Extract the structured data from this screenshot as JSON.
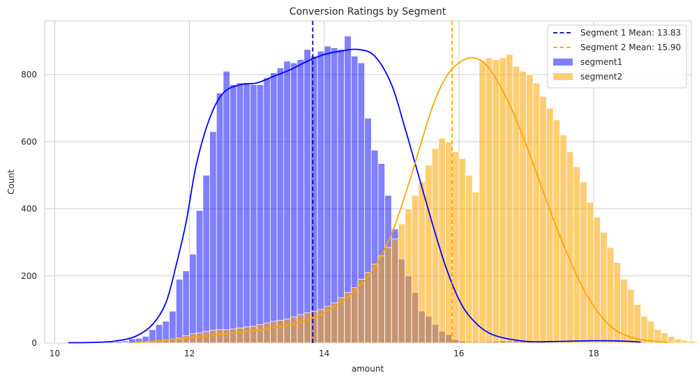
{
  "chart_data": {
    "type": "histogram",
    "title": "Conversion Ratings by Segment",
    "xlabel": "amount",
    "ylabel": "Count",
    "xlim": [
      9.85,
      19.45
    ],
    "ylim": [
      0,
      960
    ],
    "xticks": [
      10,
      12,
      14,
      16,
      18
    ],
    "yticks": [
      0,
      200,
      400,
      600,
      800
    ],
    "grid": true,
    "legend_position": "top-right",
    "colors": {
      "segment1": "#0000ff",
      "segment2": "#ffa500",
      "mean1_line": "#0000aa",
      "mean2_line": "#ffa500"
    },
    "series": [
      {
        "name": "segment1",
        "bin_start": 10.2,
        "bin_width": 0.1,
        "counts": [
          1,
          0,
          1,
          2,
          1,
          2,
          3,
          4,
          6,
          12,
          14,
          20,
          40,
          55,
          65,
          95,
          190,
          215,
          265,
          395,
          500,
          630,
          745,
          810,
          770,
          775,
          775,
          770,
          770,
          790,
          805,
          820,
          840,
          835,
          845,
          875,
          855,
          870,
          885,
          880,
          875,
          915,
          855,
          835,
          670,
          575,
          535,
          440,
          340,
          250,
          200,
          150,
          95,
          80,
          55,
          35,
          25,
          10,
          6,
          4,
          4,
          3,
          4,
          5,
          7,
          6,
          7,
          6,
          7,
          5,
          3,
          2,
          1,
          1,
          0
        ],
        "kde": [
          [
            10.2,
            1
          ],
          [
            10.6,
            2
          ],
          [
            10.9,
            6
          ],
          [
            11.2,
            20
          ],
          [
            11.45,
            55
          ],
          [
            11.65,
            120
          ],
          [
            11.8,
            230
          ],
          [
            11.95,
            360
          ],
          [
            12.1,
            530
          ],
          [
            12.3,
            670
          ],
          [
            12.5,
            745
          ],
          [
            12.75,
            770
          ],
          [
            13.0,
            775
          ],
          [
            13.25,
            795
          ],
          [
            13.5,
            815
          ],
          [
            13.75,
            840
          ],
          [
            14.0,
            860
          ],
          [
            14.25,
            870
          ],
          [
            14.5,
            875
          ],
          [
            14.75,
            855
          ],
          [
            15.0,
            770
          ],
          [
            15.2,
            640
          ],
          [
            15.4,
            500
          ],
          [
            15.6,
            360
          ],
          [
            15.8,
            230
          ],
          [
            16.0,
            130
          ],
          [
            16.2,
            70
          ],
          [
            16.5,
            25
          ],
          [
            17.0,
            5
          ],
          [
            17.5,
            5
          ],
          [
            18.0,
            7
          ],
          [
            18.4,
            6
          ],
          [
            18.7,
            3
          ]
        ]
      },
      {
        "name": "segment2",
        "bin_start": 11.0,
        "bin_width": 0.1,
        "counts": [
          1,
          0,
          2,
          3,
          5,
          8,
          10,
          12,
          15,
          22,
          28,
          30,
          35,
          38,
          40,
          40,
          42,
          45,
          48,
          50,
          55,
          60,
          65,
          68,
          72,
          78,
          85,
          90,
          95,
          100,
          110,
          120,
          135,
          150,
          165,
          190,
          210,
          235,
          260,
          285,
          310,
          355,
          400,
          440,
          480,
          530,
          580,
          610,
          600,
          570,
          550,
          500,
          450,
          840,
          850,
          845,
          850,
          860,
          825,
          810,
          800,
          775,
          735,
          700,
          665,
          620,
          570,
          525,
          480,
          420,
          375,
          330,
          285,
          240,
          190,
          160,
          115,
          80,
          65,
          40,
          30,
          20,
          12,
          8,
          5,
          3,
          2,
          1,
          1,
          0,
          0
        ],
        "kde": [
          [
            11.2,
            2
          ],
          [
            11.6,
            8
          ],
          [
            12.0,
            16
          ],
          [
            12.5,
            26
          ],
          [
            13.0,
            38
          ],
          [
            13.5,
            55
          ],
          [
            13.9,
            80
          ],
          [
            14.2,
            115
          ],
          [
            14.5,
            165
          ],
          [
            14.75,
            225
          ],
          [
            15.0,
            325
          ],
          [
            15.2,
            440
          ],
          [
            15.4,
            570
          ],
          [
            15.6,
            700
          ],
          [
            15.8,
            790
          ],
          [
            16.0,
            835
          ],
          [
            16.2,
            850
          ],
          [
            16.4,
            830
          ],
          [
            16.6,
            770
          ],
          [
            16.8,
            690
          ],
          [
            17.0,
            590
          ],
          [
            17.2,
            480
          ],
          [
            17.4,
            370
          ],
          [
            17.6,
            270
          ],
          [
            17.8,
            180
          ],
          [
            18.0,
            110
          ],
          [
            18.2,
            60
          ],
          [
            18.4,
            30
          ],
          [
            18.7,
            10
          ],
          [
            19.1,
            2
          ]
        ]
      }
    ],
    "mean_lines": [
      {
        "label": "Segment 1 Mean: 13.83",
        "x": 13.83
      },
      {
        "label": "Segment 2 Mean: 15.90",
        "x": 15.9
      }
    ]
  }
}
